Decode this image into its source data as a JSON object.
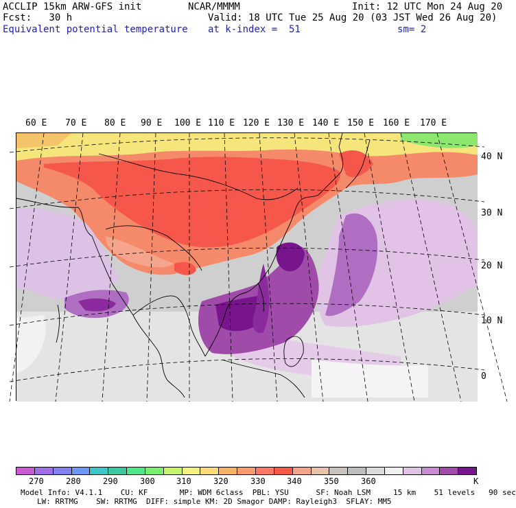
{
  "header": {
    "line1_left": "ACCLIP 15km ARW-GFS init",
    "line1_mid": "NCAR/MMMM",
    "line1_right": "Init: 12 UTC Mon 24 Aug 20",
    "line2_left": "Fcst:   30 h",
    "line2_right": "Valid: 18 UTC Tue 25 Aug 20 (03 JST Wed 26 Aug 20)",
    "line3_left": "Equivalent potential temperature",
    "line3_mid": "at k-index =  51",
    "line3_right": "sm= 2"
  },
  "map": {
    "lon_labels": [
      "60 E",
      "70 E",
      "80 E",
      "90 E",
      "100 E",
      "110 E",
      "120 E",
      "130 E",
      "140 E",
      "150 E",
      "160 E",
      "170 E"
    ],
    "lat_labels": [
      "40 N",
      "30 N",
      "20 N",
      "10 N",
      "0"
    ]
  },
  "colorbar": {
    "colors": [
      "#c85ad2",
      "#a06ee6",
      "#8282f0",
      "#6e96f5",
      "#3cc8c8",
      "#3cc8a0",
      "#50e68c",
      "#78f06e",
      "#c8f56e",
      "#f5f082",
      "#fadc78",
      "#f5b464",
      "#fa9b6e",
      "#fa7864",
      "#f55a46",
      "#f5a58c",
      "#e6c3aa",
      "#c8c3be",
      "#bebebe",
      "#dcdcdc",
      "#f0f0f0",
      "#e1c3e6",
      "#c88cd2",
      "#a04baa",
      "#78148c"
    ],
    "tick_labels": [
      "270",
      "280",
      "290",
      "300",
      "310",
      "320",
      "330",
      "340",
      "350",
      "360"
    ],
    "unit": "K"
  },
  "footer": {
    "line1": "Model Info: V4.1.1    CU: KF       MP: WDM 6class  PBL: YSU      SF: Noah LSM     15 km    51 levels   90 sec",
    "line2": "LW: RRTMG    SW: RRTMG  DIFF: simple KM: 2D Smagor DAMP: Rayleigh3  SFLAY: MM5"
  }
}
